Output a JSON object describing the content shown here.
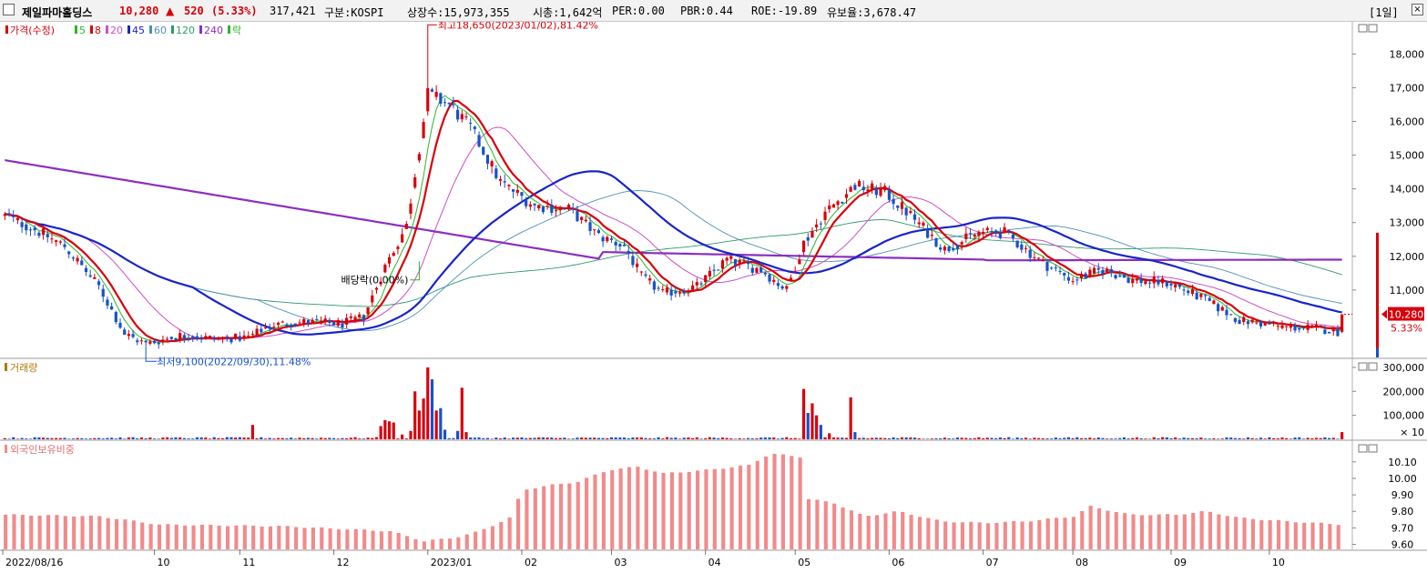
{
  "header": {
    "stock_name": "제일파마홀딩스",
    "price": "10,280",
    "change_arrow": "▲",
    "change": "520",
    "change_pct": "(5.33%)",
    "volume": "317,421",
    "market": "구분:KOSPI",
    "shares": "상장수:15,973,355",
    "market_cap": "시총:1,642억",
    "per": "PER:0.00",
    "pbr": "PBR:0.44",
    "roe": "ROE:-19.89",
    "float_ratio": "유보율:3,678.47",
    "period_button": "[1일]"
  },
  "colors": {
    "up": "#d8000b",
    "down": "#1652c7",
    "ma5": "#2ab52a",
    "ma8": "#d8000b",
    "ma20": "#c94fc9",
    "ma45": "#1824c9",
    "ma60": "#4f8fb8",
    "ma120": "#2f9a6a",
    "ma240": "#8a2ec0",
    "foreign_bar": "#f28a8a",
    "legend_text": "#b07a00"
  },
  "chart_data": [
    {
      "type": "candlestick",
      "panel": "price",
      "legend": [
        {
          "name": "가격(수정)",
          "color": "#d8000b"
        },
        {
          "name": "5",
          "color": "#2ab52a"
        },
        {
          "name": "8",
          "color": "#d8000b"
        },
        {
          "name": "20",
          "color": "#c94fc9"
        },
        {
          "name": "45",
          "color": "#1824c9"
        },
        {
          "name": "60",
          "color": "#4f8fb8"
        },
        {
          "name": "120",
          "color": "#2f9a6a"
        },
        {
          "name": "240",
          "color": "#8a2ec0"
        },
        {
          "name": "락",
          "color": "#2ab52a"
        }
      ],
      "y_ticks": [
        "18,000",
        "17,000",
        "16,000",
        "15,000",
        "14,000",
        "13,000",
        "12,000",
        "11,000"
      ],
      "ylim": [
        9000,
        18900
      ],
      "x_ticks": [
        "2022/08/16",
        "10",
        "11",
        "12",
        "2023/01",
        "02",
        "03",
        "04",
        "05",
        "06",
        "07",
        "08",
        "09",
        "10"
      ],
      "last_price_label": "10,280",
      "last_pct_label": "5.33%",
      "annotations": {
        "high": "최고18,650(2023/01/02),81.42%",
        "low": "최저9,100(2022/09/30),11.48%",
        "dividend": "배당락(0.00%)"
      },
      "anchors": [
        [
          "2022-08-16",
          13200
        ],
        [
          "2022-08-25",
          12800
        ],
        [
          "2022-09-05",
          12300
        ],
        [
          "2022-09-15",
          11100
        ],
        [
          "2022-09-23",
          9700
        ],
        [
          "2022-09-30",
          9400
        ],
        [
          "2022-10-12",
          9650
        ],
        [
          "2022-10-25",
          9550
        ],
        [
          "2022-11-03",
          9600
        ],
        [
          "2022-11-10",
          9950
        ],
        [
          "2022-11-22",
          10050
        ],
        [
          "2022-12-05",
          10000
        ],
        [
          "2022-12-12",
          10200
        ],
        [
          "2022-12-19",
          11700
        ],
        [
          "2022-12-26",
          12900
        ],
        [
          "2023-01-02",
          16800
        ],
        [
          "2023-01-09",
          16500
        ],
        [
          "2023-01-16",
          15800
        ],
        [
          "2023-01-25",
          14200
        ],
        [
          "2023-02-06",
          13500
        ],
        [
          "2023-02-16",
          13400
        ],
        [
          "2023-02-27",
          12600
        ],
        [
          "2023-03-07",
          12300
        ],
        [
          "2023-03-13",
          11400
        ],
        [
          "2023-03-20",
          10900
        ],
        [
          "2023-03-30",
          11100
        ],
        [
          "2023-04-10",
          11900
        ],
        [
          "2023-04-20",
          11600
        ],
        [
          "2023-04-28",
          11000
        ],
        [
          "2023-05-04",
          12400
        ],
        [
          "2023-05-11",
          13300
        ],
        [
          "2023-05-22",
          14100
        ],
        [
          "2023-05-31",
          13900
        ],
        [
          "2023-06-09",
          13100
        ],
        [
          "2023-06-20",
          12200
        ],
        [
          "2023-06-30",
          12700
        ],
        [
          "2023-07-10",
          12700
        ],
        [
          "2023-07-21",
          11800
        ],
        [
          "2023-08-01",
          11300
        ],
        [
          "2023-08-10",
          11600
        ],
        [
          "2023-08-21",
          11300
        ],
        [
          "2023-09-01",
          11200
        ],
        [
          "2023-09-13",
          10700
        ],
        [
          "2023-09-25",
          10100
        ],
        [
          "2023-10-10",
          9900
        ],
        [
          "2023-10-20",
          9850
        ],
        [
          "2023-10-26",
          9760
        ],
        [
          "2023-10-27",
          10280
        ]
      ]
    },
    {
      "type": "bar",
      "panel": "volume",
      "legend": "거래량",
      "y_ticks": [
        "300,000",
        "200,000",
        "100,000"
      ],
      "unit_label": "× 10",
      "ylim": [
        0,
        330000
      ],
      "spikes": [
        [
          "2022-11-04",
          60000
        ],
        [
          "2022-12-16",
          55000
        ],
        [
          "2022-12-19",
          80000
        ],
        [
          "2022-12-20",
          75000
        ],
        [
          "2022-12-21",
          70000
        ],
        [
          "2022-12-23",
          20000
        ],
        [
          "2022-12-27",
          35000
        ],
        [
          "2022-12-28",
          200000
        ],
        [
          "2022-12-29",
          120000
        ],
        [
          "2022-12-30",
          170000
        ],
        [
          "2023-01-02",
          300000
        ],
        [
          "2023-01-03",
          250000
        ],
        [
          "2023-01-04",
          120000
        ],
        [
          "2023-01-05",
          130000
        ],
        [
          "2023-01-06",
          40000
        ],
        [
          "2023-01-11",
          35000
        ],
        [
          "2023-01-12",
          215000
        ],
        [
          "2023-01-13",
          30000
        ],
        [
          "2023-05-04",
          210000
        ],
        [
          "2023-05-05",
          110000
        ],
        [
          "2023-05-08",
          150000
        ],
        [
          "2023-05-09",
          100000
        ],
        [
          "2023-05-10",
          60000
        ],
        [
          "2023-05-12",
          25000
        ],
        [
          "2023-05-19",
          175000
        ],
        [
          "2023-05-22",
          30000
        ],
        [
          "2023-10-27",
          30000
        ]
      ]
    },
    {
      "type": "bar",
      "panel": "foreign",
      "legend": "외국인보유비중",
      "y_ticks": [
        "10.10",
        "10.00",
        "9.90",
        "9.80",
        "9.70",
        "9.60"
      ],
      "ylim": [
        9.57,
        10.22
      ],
      "anchors": [
        [
          "2022-08-16",
          9.78
        ],
        [
          "2022-09-15",
          9.77
        ],
        [
          "2022-10-05",
          9.72
        ],
        [
          "2022-11-15",
          9.71
        ],
        [
          "2022-12-20",
          9.68
        ],
        [
          "2022-12-30",
          9.62
        ],
        [
          "2023-01-10",
          9.64
        ],
        [
          "2023-01-18",
          9.68
        ],
        [
          "2023-01-27",
          9.76
        ],
        [
          "2023-02-01",
          9.93
        ],
        [
          "2023-02-10",
          9.96
        ],
        [
          "2023-02-20",
          9.98
        ],
        [
          "2023-03-01",
          10.05
        ],
        [
          "2023-03-10",
          10.07
        ],
        [
          "2023-03-20",
          10.03
        ],
        [
          "2023-04-03",
          10.05
        ],
        [
          "2023-04-17",
          10.08
        ],
        [
          "2023-04-24",
          10.15
        ],
        [
          "2023-05-03",
          10.13
        ],
        [
          "2023-05-04",
          9.88
        ],
        [
          "2023-05-15",
          9.85
        ],
        [
          "2023-05-24",
          9.77
        ],
        [
          "2023-06-05",
          9.8
        ],
        [
          "2023-06-19",
          9.74
        ],
        [
          "2023-07-03",
          9.73
        ],
        [
          "2023-07-17",
          9.74
        ],
        [
          "2023-08-01",
          9.77
        ],
        [
          "2023-08-07",
          9.83
        ],
        [
          "2023-08-18",
          9.78
        ],
        [
          "2023-09-04",
          9.78
        ],
        [
          "2023-09-13",
          9.8
        ],
        [
          "2023-09-25",
          9.76
        ],
        [
          "2023-10-10",
          9.74
        ],
        [
          "2023-10-27",
          9.72
        ]
      ]
    }
  ]
}
